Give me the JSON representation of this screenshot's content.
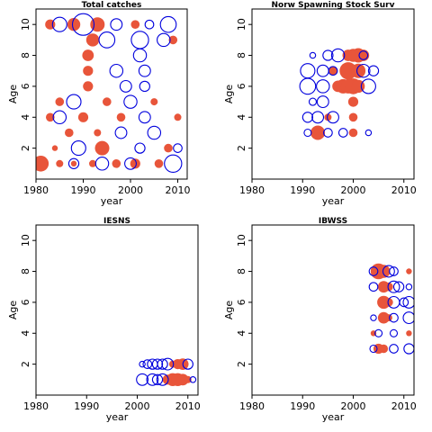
{
  "chart_data": [
    {
      "type": "scatter",
      "title": "Total catches",
      "xlabel": "year",
      "ylabel": "Age",
      "xlim": [
        1980,
        2012
      ],
      "ylim": [
        0,
        11
      ],
      "xticks": [
        1980,
        1990,
        2000,
        2010
      ],
      "yticks": [
        2,
        4,
        6,
        8,
        10
      ],
      "marker": "bubble",
      "series": [
        {
          "color": "#e8553a",
          "filled": true,
          "points": [
            [
              1981,
              1,
              1.1
            ],
            [
              1985,
              1,
              0.5
            ],
            [
              1988,
              1,
              0.4
            ],
            [
              1992,
              1,
              0.5
            ],
            [
              1997,
              1,
              0.6
            ],
            [
              2001,
              1,
              0.7
            ],
            [
              2006,
              1,
              0.6
            ],
            [
              1984,
              2,
              0.4
            ],
            [
              1994,
              2,
              1.0
            ],
            [
              2008,
              2,
              0.6
            ],
            [
              1983,
              10,
              0.7
            ],
            [
              1988,
              10,
              0.9
            ],
            [
              1993,
              10,
              1.0
            ],
            [
              2001,
              10,
              0.6
            ],
            [
              1992,
              9,
              0.9
            ],
            [
              2009,
              9,
              0.6
            ],
            [
              1991,
              8,
              0.8
            ],
            [
              1991,
              7,
              0.7
            ],
            [
              1991,
              6,
              0.7
            ],
            [
              1983,
              4,
              0.6
            ],
            [
              1990,
              4,
              0.7
            ],
            [
              1998,
              4,
              0.6
            ],
            [
              2010,
              4,
              0.5
            ],
            [
              1987,
              3,
              0.6
            ],
            [
              1993,
              3,
              0.5
            ],
            [
              1985,
              5,
              0.6
            ],
            [
              1995,
              5,
              0.6
            ],
            [
              2005,
              5,
              0.5
            ]
          ]
        },
        {
          "color": "#0000dd",
          "filled": false,
          "points": [
            [
              1985,
              10,
              1.0
            ],
            [
              1990,
              10,
              1.5
            ],
            [
              1997,
              10,
              0.8
            ],
            [
              2004,
              10,
              0.6
            ],
            [
              2008,
              10,
              1.1
            ],
            [
              1995,
              9,
              1.1
            ],
            [
              2002,
              9,
              1.2
            ],
            [
              2007,
              9,
              0.9
            ],
            [
              2002,
              8,
              0.9
            ],
            [
              1997,
              7,
              0.9
            ],
            [
              2003,
              7,
              0.8
            ],
            [
              1999,
              6,
              0.8
            ],
            [
              2003,
              6,
              0.7
            ],
            [
              1988,
              5,
              1.0
            ],
            [
              2000,
              5,
              0.9
            ],
            [
              1985,
              4,
              0.9
            ],
            [
              2003,
              4,
              0.8
            ],
            [
              1998,
              3,
              0.8
            ],
            [
              2005,
              3,
              0.9
            ],
            [
              1989,
              2,
              1.0
            ],
            [
              2002,
              2,
              0.7
            ],
            [
              2010,
              2,
              0.6
            ],
            [
              1988,
              1,
              0.7
            ],
            [
              1994,
              1,
              0.9
            ],
            [
              2000,
              1,
              0.8
            ],
            [
              2009,
              1,
              1.2
            ]
          ]
        }
      ]
    },
    {
      "type": "scatter",
      "title": "Norw Spawning Stock Surv",
      "xlabel": "year",
      "ylabel": "Age",
      "xlim": [
        1980,
        2012
      ],
      "ylim": [
        0,
        11
      ],
      "xticks": [
        1980,
        1990,
        2000,
        2010
      ],
      "yticks": [
        2,
        4,
        6,
        8,
        10
      ],
      "marker": "bubble",
      "series": [
        {
          "color": "#e8553a",
          "filled": true,
          "points": [
            [
              1999,
              8,
              0.8
            ],
            [
              2000,
              8,
              0.9
            ],
            [
              2001,
              8,
              1.0
            ],
            [
              2002,
              8,
              0.8
            ],
            [
              1996,
              7,
              0.6
            ],
            [
              1999,
              7,
              1.2
            ],
            [
              2001,
              7,
              1.0
            ],
            [
              1997,
              6,
              0.8
            ],
            [
              1998,
              6,
              1.0
            ],
            [
              1999,
              6,
              1.0
            ],
            [
              2000,
              6,
              1.1
            ],
            [
              2001,
              6,
              0.9
            ],
            [
              2000,
              5,
              0.7
            ],
            [
              1995,
              4,
              0.5
            ],
            [
              2000,
              4,
              0.6
            ],
            [
              1993,
              3,
              1.0
            ],
            [
              2000,
              3,
              0.6
            ]
          ]
        },
        {
          "color": "#0000dd",
          "filled": false,
          "points": [
            [
              1992,
              8,
              0.4
            ],
            [
              1995,
              8,
              0.7
            ],
            [
              1997,
              8,
              0.9
            ],
            [
              2002,
              8,
              0.6
            ],
            [
              1991,
              7,
              1.0
            ],
            [
              1994,
              7,
              0.8
            ],
            [
              1996,
              7,
              0.6
            ],
            [
              2002,
              7,
              0.9
            ],
            [
              2004,
              7,
              0.7
            ],
            [
              1991,
              6,
              1.1
            ],
            [
              1994,
              6,
              0.9
            ],
            [
              2003,
              6,
              1.0
            ],
            [
              1992,
              5,
              0.5
            ],
            [
              1994,
              5,
              0.8
            ],
            [
              1991,
              4,
              0.7
            ],
            [
              1993,
              4,
              0.8
            ],
            [
              1996,
              4,
              0.8
            ],
            [
              1991,
              3,
              0.5
            ],
            [
              1995,
              3,
              0.6
            ],
            [
              1998,
              3,
              0.6
            ],
            [
              2003,
              3,
              0.4
            ]
          ]
        }
      ]
    },
    {
      "type": "scatter",
      "title": "IESNS",
      "xlabel": "year",
      "ylabel": "Age",
      "xlim": [
        1980,
        2012
      ],
      "ylim": [
        0,
        11
      ],
      "xticks": [
        1980,
        1990,
        2000,
        2010
      ],
      "yticks": [
        2,
        4,
        6,
        8,
        10
      ],
      "marker": "bubble",
      "series": [
        {
          "color": "#e8553a",
          "filled": true,
          "points": [
            [
              2006,
              1,
              0.7
            ],
            [
              2007,
              1,
              0.9
            ],
            [
              2008,
              1,
              0.9
            ],
            [
              2009,
              1,
              0.8
            ],
            [
              2010,
              1,
              0.5
            ],
            [
              2007,
              2,
              0.5
            ],
            [
              2008,
              2,
              0.7
            ],
            [
              2009,
              2,
              0.8
            ]
          ]
        },
        {
          "color": "#0000dd",
          "filled": false,
          "points": [
            [
              2001,
              2,
              0.4
            ],
            [
              2002,
              2,
              0.6
            ],
            [
              2003,
              2,
              0.7
            ],
            [
              2004,
              2,
              0.7
            ],
            [
              2005,
              2,
              0.7
            ],
            [
              2006,
              2,
              0.8
            ],
            [
              2010,
              2,
              0.7
            ],
            [
              2001,
              1,
              0.8
            ],
            [
              2003,
              1,
              0.8
            ],
            [
              2004,
              1,
              0.7
            ],
            [
              2005,
              1,
              0.8
            ],
            [
              2011,
              1,
              0.4
            ]
          ]
        }
      ]
    },
    {
      "type": "scatter",
      "title": "IBWSS",
      "xlabel": "year",
      "ylabel": "Age",
      "xlim": [
        1980,
        2012
      ],
      "ylim": [
        0,
        11
      ],
      "xticks": [
        1980,
        1990,
        2000,
        2010
      ],
      "yticks": [
        2,
        4,
        6,
        8,
        10
      ],
      "marker": "bubble",
      "series": [
        {
          "color": "#e8553a",
          "filled": true,
          "points": [
            [
              2005,
              8,
              1.1
            ],
            [
              2006,
              8,
              0.9
            ],
            [
              2011,
              8,
              0.4
            ],
            [
              2006,
              7,
              0.8
            ],
            [
              2007,
              7,
              0.6
            ],
            [
              2006,
              6,
              0.9
            ],
            [
              2007,
              6,
              0.6
            ],
            [
              2006,
              5,
              0.8
            ],
            [
              2007,
              5,
              0.5
            ],
            [
              2004,
              4,
              0.4
            ],
            [
              2011,
              4,
              0.4
            ],
            [
              2005,
              3,
              0.7
            ],
            [
              2006,
              3,
              0.6
            ]
          ]
        },
        {
          "color": "#0000dd",
          "filled": false,
          "points": [
            [
              2004,
              8,
              0.6
            ],
            [
              2007,
              8,
              0.8
            ],
            [
              2008,
              8,
              0.6
            ],
            [
              2004,
              7,
              0.6
            ],
            [
              2008,
              7,
              0.8
            ],
            [
              2009,
              7,
              0.7
            ],
            [
              2011,
              7,
              0.4
            ],
            [
              2008,
              6,
              0.8
            ],
            [
              2010,
              6,
              0.6
            ],
            [
              2011,
              6,
              0.8
            ],
            [
              2004,
              5,
              0.4
            ],
            [
              2008,
              5,
              0.6
            ],
            [
              2011,
              5,
              0.8
            ],
            [
              2005,
              4,
              0.5
            ],
            [
              2008,
              4,
              0.5
            ],
            [
              2004,
              3,
              0.5
            ],
            [
              2008,
              3,
              0.6
            ],
            [
              2011,
              3,
              0.7
            ]
          ]
        }
      ]
    }
  ]
}
